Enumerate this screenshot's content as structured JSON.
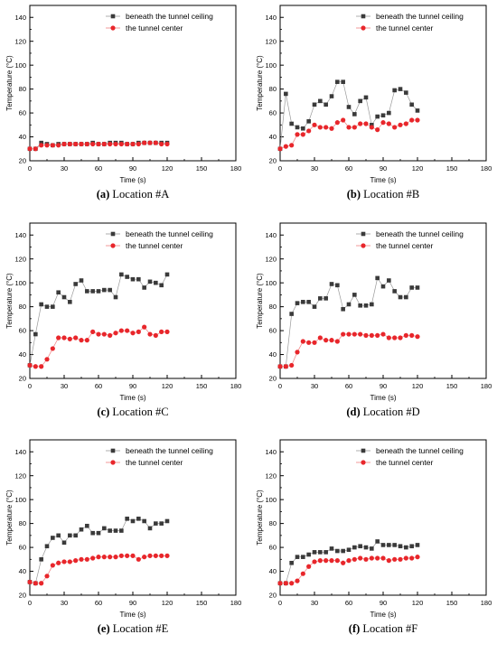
{
  "figure": {
    "series_styles": [
      {
        "color": "#3a3a3a",
        "marker": "square",
        "line_color": "#9a9a9a"
      },
      {
        "color": "#e8262b",
        "marker": "circle",
        "line_color": "#f08080"
      }
    ]
  },
  "chart_data": [
    {
      "type": "line",
      "panel_letter": "(a)",
      "caption_text": " Location #A",
      "xlabel": "Time (s)",
      "ylabel": "Temperature (°C)",
      "xlim": [
        0,
        180
      ],
      "ylim": [
        20,
        150
      ],
      "xticks": [
        0,
        30,
        60,
        90,
        120,
        150,
        180
      ],
      "yticks": [
        20,
        40,
        60,
        80,
        100,
        120,
        140
      ],
      "legend_position": "top-center",
      "series": [
        {
          "name": "beneath the tunnel ceiling",
          "x": [
            0,
            5,
            10,
            15,
            20,
            25,
            30,
            35,
            40,
            45,
            50,
            55,
            60,
            65,
            70,
            75,
            80,
            85,
            90,
            95,
            100,
            105,
            110,
            115,
            120
          ],
          "y": [
            30,
            30,
            35,
            34,
            33,
            34,
            34,
            34,
            34,
            34,
            34,
            35,
            34,
            34,
            35,
            35,
            35,
            34,
            34,
            35,
            35,
            35,
            35,
            35,
            35
          ]
        },
        {
          "name": "the tunnel center",
          "x": [
            0,
            5,
            10,
            15,
            20,
            25,
            30,
            35,
            40,
            45,
            50,
            55,
            60,
            65,
            70,
            75,
            80,
            85,
            90,
            95,
            100,
            105,
            110,
            115,
            120
          ],
          "y": [
            30,
            30,
            33,
            33,
            33,
            33,
            34,
            34,
            34,
            34,
            34,
            34,
            34,
            34,
            34,
            34,
            34,
            34,
            34,
            34,
            35,
            35,
            35,
            34,
            34
          ]
        }
      ]
    },
    {
      "type": "line",
      "panel_letter": "(b)",
      "caption_text": " Location #B",
      "xlabel": "Time (s)",
      "ylabel": "Temperature (°C)",
      "xlim": [
        0,
        180
      ],
      "ylim": [
        20,
        150
      ],
      "xticks": [
        0,
        30,
        60,
        90,
        120,
        150,
        180
      ],
      "yticks": [
        20,
        40,
        60,
        80,
        100,
        120,
        140
      ],
      "legend_position": "top-center",
      "series": [
        {
          "name": "beneath the tunnel ceiling",
          "x": [
            0,
            5,
            10,
            15,
            20,
            25,
            30,
            35,
            40,
            45,
            50,
            55,
            60,
            65,
            70,
            75,
            80,
            85,
            90,
            95,
            100,
            105,
            110,
            115,
            120
          ],
          "y": [
            30,
            76,
            51,
            48,
            47,
            53,
            67,
            70,
            67,
            74,
            86,
            86,
            65,
            59,
            70,
            73,
            50,
            57,
            58,
            60,
            79,
            80,
            77,
            67,
            62
          ]
        },
        {
          "name": "the tunnel center",
          "x": [
            0,
            5,
            10,
            15,
            20,
            25,
            30,
            35,
            40,
            45,
            50,
            55,
            60,
            65,
            70,
            75,
            80,
            85,
            90,
            95,
            100,
            105,
            110,
            115,
            120
          ],
          "y": [
            30,
            32,
            33,
            42,
            42,
            45,
            50,
            48,
            48,
            47,
            52,
            54,
            48,
            48,
            51,
            51,
            48,
            46,
            52,
            51,
            48,
            50,
            51,
            54,
            54
          ]
        }
      ]
    },
    {
      "type": "line",
      "panel_letter": "(c)",
      "caption_text": " Location #C",
      "xlabel": "Time (s)",
      "ylabel": "Temperature (°C)",
      "xlim": [
        0,
        180
      ],
      "ylim": [
        20,
        150
      ],
      "xticks": [
        0,
        30,
        60,
        90,
        120,
        150,
        180
      ],
      "yticks": [
        20,
        40,
        60,
        80,
        100,
        120,
        140
      ],
      "legend_position": "top-center",
      "series": [
        {
          "name": "beneath the tunnel ceiling",
          "x": [
            0,
            5,
            10,
            15,
            20,
            25,
            30,
            35,
            40,
            45,
            50,
            55,
            60,
            65,
            70,
            75,
            80,
            85,
            90,
            95,
            100,
            105,
            110,
            115,
            120
          ],
          "y": [
            31,
            57,
            82,
            80,
            80,
            92,
            88,
            84,
            99,
            102,
            93,
            93,
            93,
            94,
            94,
            88,
            107,
            105,
            103,
            103,
            96,
            101,
            100,
            98,
            107
          ]
        },
        {
          "name": "the tunnel center",
          "x": [
            0,
            5,
            10,
            15,
            20,
            25,
            30,
            35,
            40,
            45,
            50,
            55,
            60,
            65,
            70,
            75,
            80,
            85,
            90,
            95,
            100,
            105,
            110,
            115,
            120
          ],
          "y": [
            31,
            30,
            30,
            36,
            45,
            54,
            54,
            53,
            54,
            52,
            52,
            59,
            57,
            57,
            56,
            58,
            60,
            60,
            58,
            59,
            63,
            57,
            56,
            59,
            59
          ]
        }
      ]
    },
    {
      "type": "line",
      "panel_letter": "(d)",
      "caption_text": " Location #D",
      "xlabel": "Time (s)",
      "ylabel": "Temperature (°C)",
      "xlim": [
        0,
        180
      ],
      "ylim": [
        20,
        150
      ],
      "xticks": [
        0,
        30,
        60,
        90,
        120,
        150,
        180
      ],
      "yticks": [
        20,
        40,
        60,
        80,
        100,
        120,
        140
      ],
      "legend_position": "top-center",
      "series": [
        {
          "name": "beneath the tunnel ceiling",
          "x": [
            0,
            5,
            10,
            15,
            20,
            25,
            30,
            35,
            40,
            45,
            50,
            55,
            60,
            65,
            70,
            75,
            80,
            85,
            90,
            95,
            100,
            105,
            110,
            115,
            120
          ],
          "y": [
            30,
            30,
            74,
            83,
            84,
            84,
            80,
            87,
            87,
            99,
            98,
            78,
            82,
            90,
            81,
            81,
            82,
            104,
            97,
            102,
            93,
            88,
            88,
            96,
            96
          ]
        },
        {
          "name": "the tunnel center",
          "x": [
            0,
            5,
            10,
            15,
            20,
            25,
            30,
            35,
            40,
            45,
            50,
            55,
            60,
            65,
            70,
            75,
            80,
            85,
            90,
            95,
            100,
            105,
            110,
            115,
            120
          ],
          "y": [
            30,
            30,
            31,
            42,
            51,
            50,
            50,
            54,
            52,
            52,
            51,
            57,
            57,
            57,
            57,
            56,
            56,
            56,
            57,
            54,
            54,
            54,
            56,
            56,
            55
          ]
        }
      ]
    },
    {
      "type": "line",
      "panel_letter": "(e)",
      "caption_text": " Location #E",
      "xlabel": "Time (s)",
      "ylabel": "Temperature (°C)",
      "xlim": [
        0,
        180
      ],
      "ylim": [
        20,
        150
      ],
      "xticks": [
        0,
        30,
        60,
        90,
        120,
        150,
        180
      ],
      "yticks": [
        20,
        40,
        60,
        80,
        100,
        120,
        140
      ],
      "legend_position": "top-center",
      "series": [
        {
          "name": "beneath the tunnel ceiling",
          "x": [
            0,
            5,
            10,
            15,
            20,
            25,
            30,
            35,
            40,
            45,
            50,
            55,
            60,
            65,
            70,
            75,
            80,
            85,
            90,
            95,
            100,
            105,
            110,
            115,
            120
          ],
          "y": [
            31,
            30,
            50,
            61,
            68,
            70,
            64,
            70,
            70,
            75,
            78,
            72,
            72,
            76,
            74,
            74,
            74,
            84,
            82,
            84,
            82,
            76,
            80,
            80,
            82
          ]
        },
        {
          "name": "the tunnel center",
          "x": [
            0,
            5,
            10,
            15,
            20,
            25,
            30,
            35,
            40,
            45,
            50,
            55,
            60,
            65,
            70,
            75,
            80,
            85,
            90,
            95,
            100,
            105,
            110,
            115,
            120
          ],
          "y": [
            31,
            30,
            30,
            36,
            45,
            47,
            48,
            48,
            49,
            50,
            50,
            51,
            52,
            52,
            52,
            52,
            53,
            53,
            53,
            50,
            52,
            53,
            53,
            53,
            53
          ]
        }
      ]
    },
    {
      "type": "line",
      "panel_letter": "(f)",
      "caption_text": " Location #F",
      "xlabel": "Time (s)",
      "ylabel": "Temperature (°C)",
      "xlim": [
        0,
        180
      ],
      "ylim": [
        20,
        150
      ],
      "xticks": [
        0,
        30,
        60,
        90,
        120,
        150,
        180
      ],
      "yticks": [
        20,
        40,
        60,
        80,
        100,
        120,
        140
      ],
      "legend_position": "top-center",
      "series": [
        {
          "name": "beneath the tunnel ceiling",
          "x": [
            0,
            5,
            10,
            15,
            20,
            25,
            30,
            35,
            40,
            45,
            50,
            55,
            60,
            65,
            70,
            75,
            80,
            85,
            90,
            95,
            100,
            105,
            110,
            115,
            120
          ],
          "y": [
            30,
            30,
            47,
            52,
            52,
            54,
            56,
            56,
            56,
            59,
            57,
            57,
            58,
            60,
            61,
            60,
            59,
            65,
            62,
            62,
            62,
            61,
            60,
            61,
            62
          ]
        },
        {
          "name": "the tunnel center",
          "x": [
            0,
            5,
            10,
            15,
            20,
            25,
            30,
            35,
            40,
            45,
            50,
            55,
            60,
            65,
            70,
            75,
            80,
            85,
            90,
            95,
            100,
            105,
            110,
            115,
            120
          ],
          "y": [
            30,
            30,
            30,
            32,
            38,
            44,
            48,
            49,
            49,
            49,
            49,
            47,
            49,
            50,
            51,
            50,
            51,
            51,
            51,
            49,
            50,
            50,
            51,
            51,
            52
          ]
        }
      ]
    }
  ]
}
